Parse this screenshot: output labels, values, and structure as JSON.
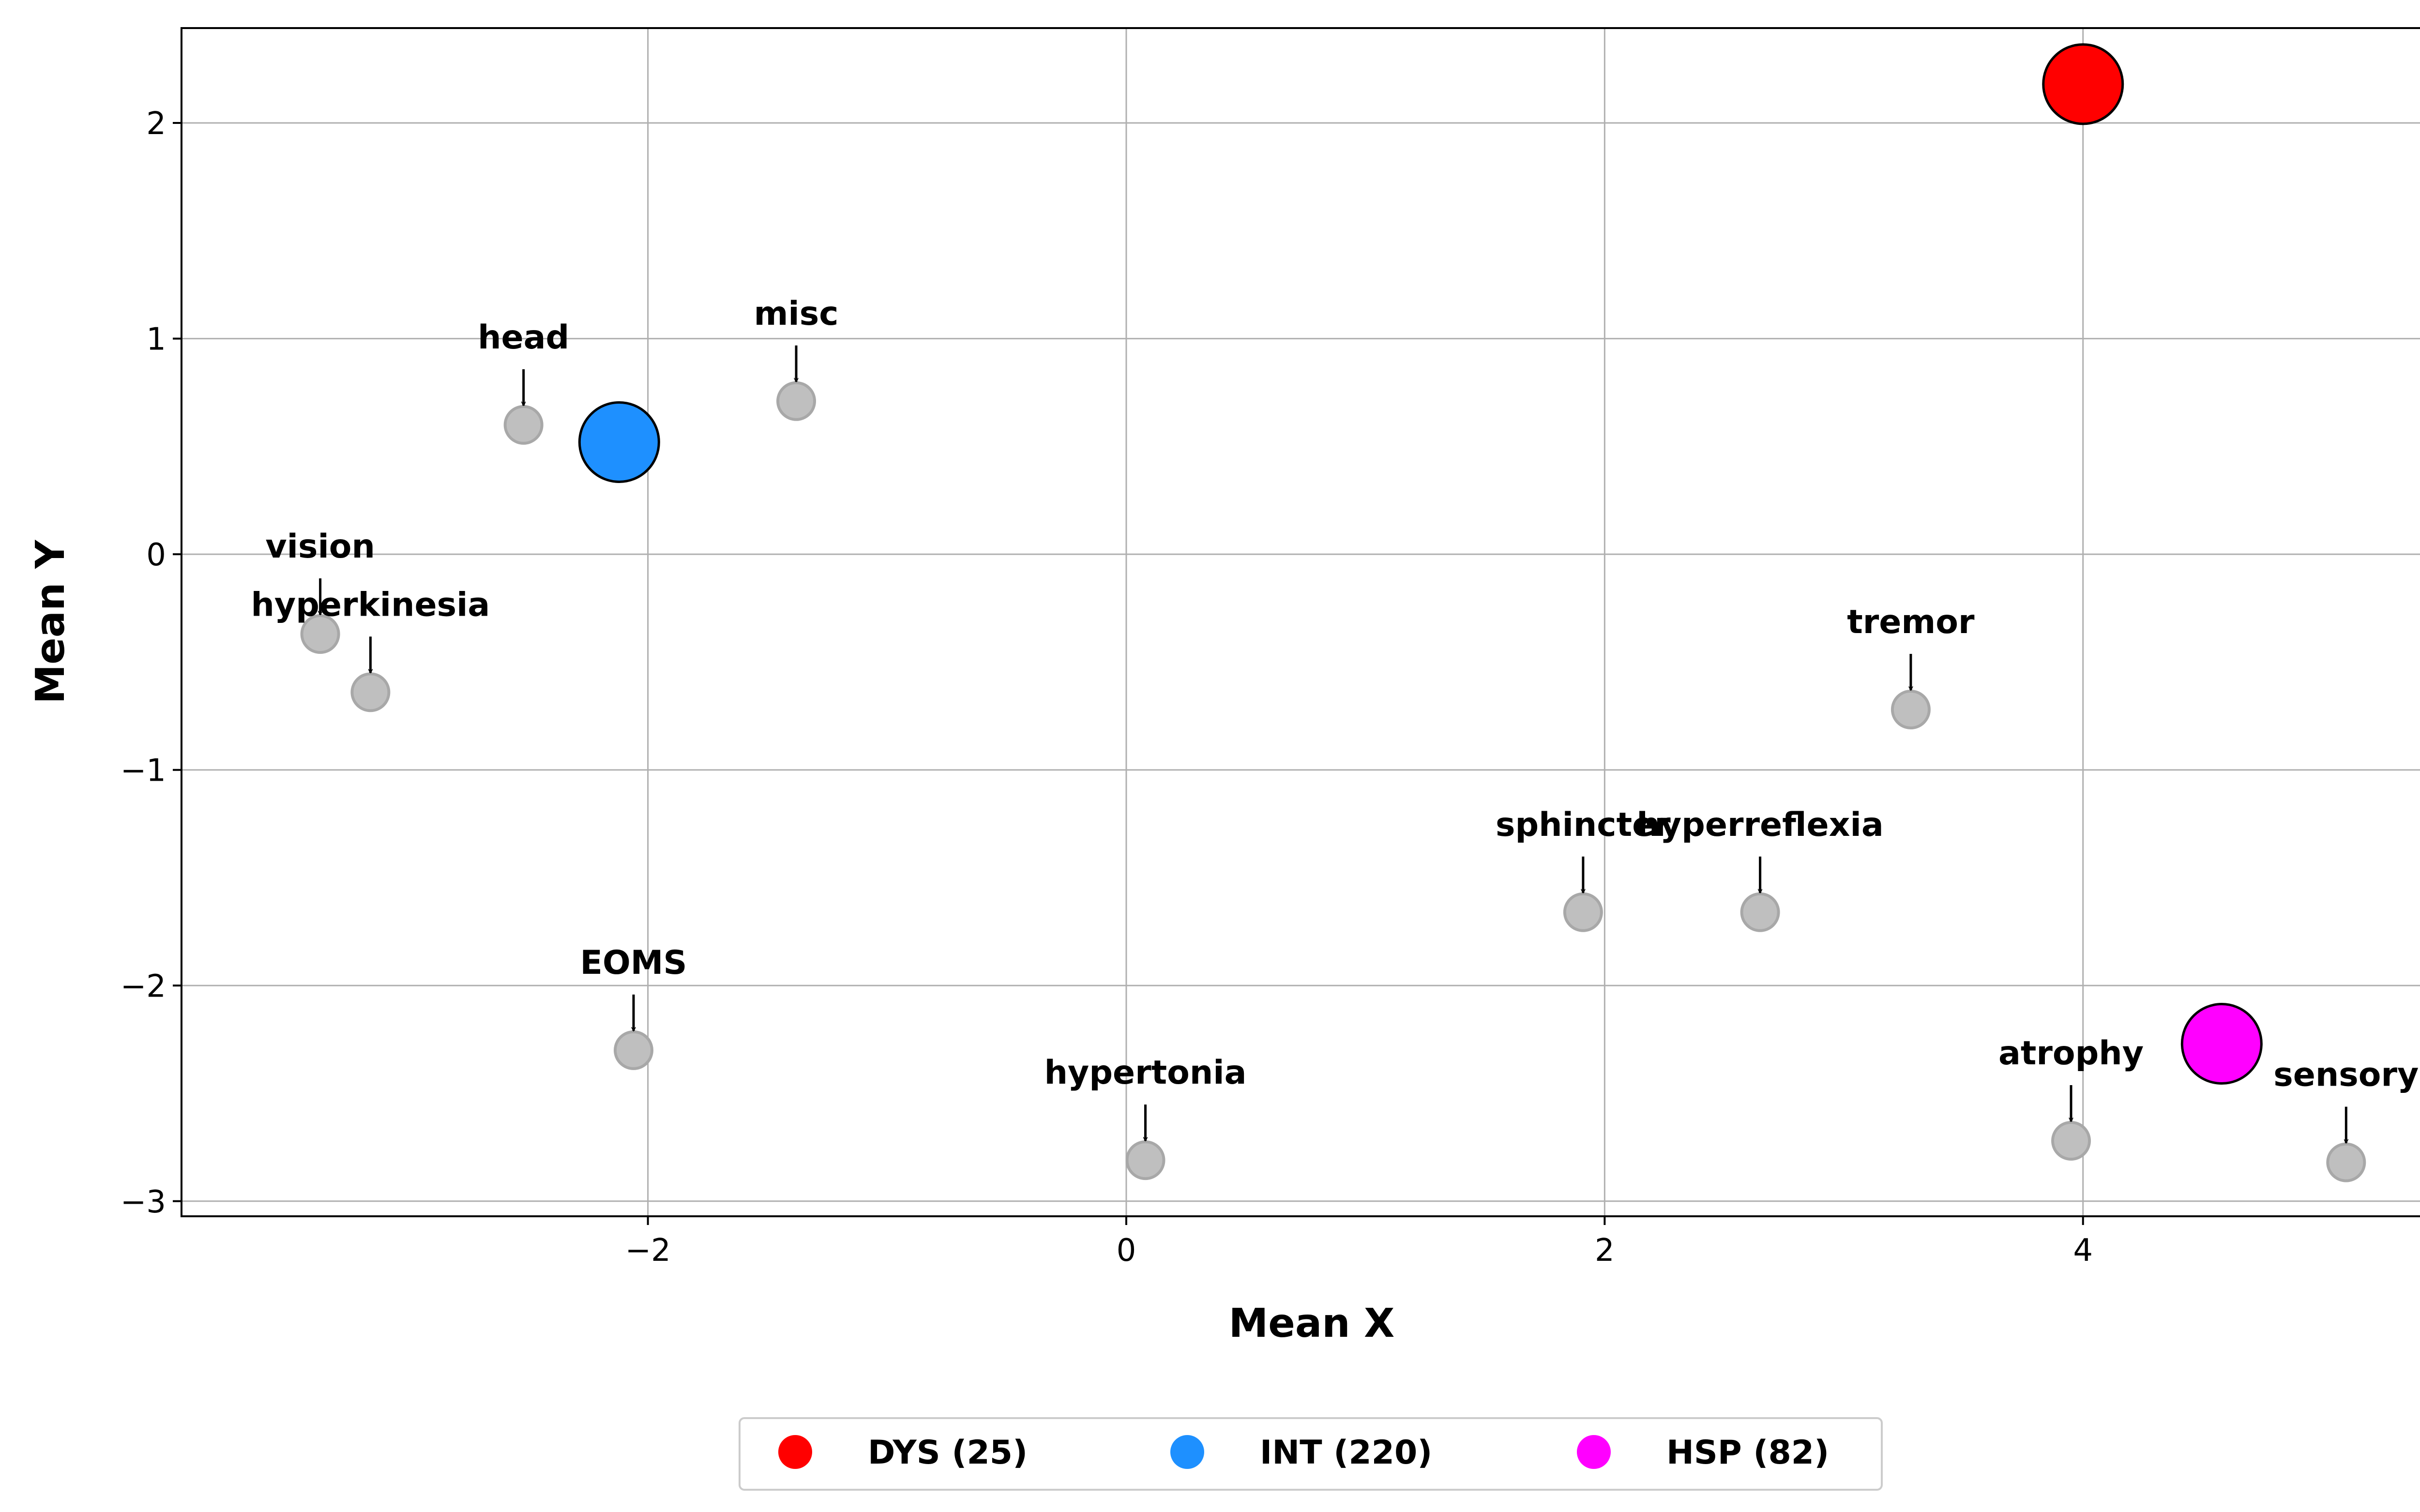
{
  "chart_data": {
    "type": "scatter",
    "xlabel": "Mean X",
    "ylabel": "Mean Y",
    "xlim": [
      -3.95,
      5.5
    ],
    "ylim": [
      -3.07,
      2.44
    ],
    "xticks": [
      -2,
      0,
      2,
      4
    ],
    "yticks": [
      -3,
      -2,
      -1,
      0,
      1,
      2
    ],
    "xtick_labels": [
      "−2",
      "0",
      "2",
      "4"
    ],
    "ytick_labels": [
      "−3",
      "−2",
      "−1",
      "0",
      "1",
      "2"
    ],
    "grid": true,
    "legend_position": "bottom-center",
    "features": [
      {
        "label": "vision",
        "x": -3.37,
        "y": -0.37
      },
      {
        "label": "hyperkinesia",
        "x": -3.16,
        "y": -0.64
      },
      {
        "label": "head",
        "x": -2.52,
        "y": 0.6
      },
      {
        "label": "misc",
        "x": -1.38,
        "y": 0.71
      },
      {
        "label": "EOMS",
        "x": -2.06,
        "y": -2.3
      },
      {
        "label": "hypertonia",
        "x": 0.08,
        "y": -2.81
      },
      {
        "label": "sphincter",
        "x": 1.91,
        "y": -1.66
      },
      {
        "label": "hyperreflexia",
        "x": 2.65,
        "y": -1.66
      },
      {
        "label": "tremor",
        "x": 3.28,
        "y": -0.72
      },
      {
        "label": "atrophy",
        "x": 3.95,
        "y": -2.72
      },
      {
        "label": "sensory",
        "x": 5.1,
        "y": -2.82
      }
    ],
    "series": [
      {
        "name": "DYS (25)",
        "x": 4.0,
        "y": 2.18,
        "color": "#ff0000"
      },
      {
        "name": "INT (220)",
        "x": -2.12,
        "y": 0.52,
        "color": "#1e90ff"
      },
      {
        "name": "HSP (82)",
        "x": 4.58,
        "y": -2.27,
        "color": "#ff00ff"
      }
    ],
    "feature_color": "#bfbfbf",
    "grid_color": "#b0b0b0"
  }
}
